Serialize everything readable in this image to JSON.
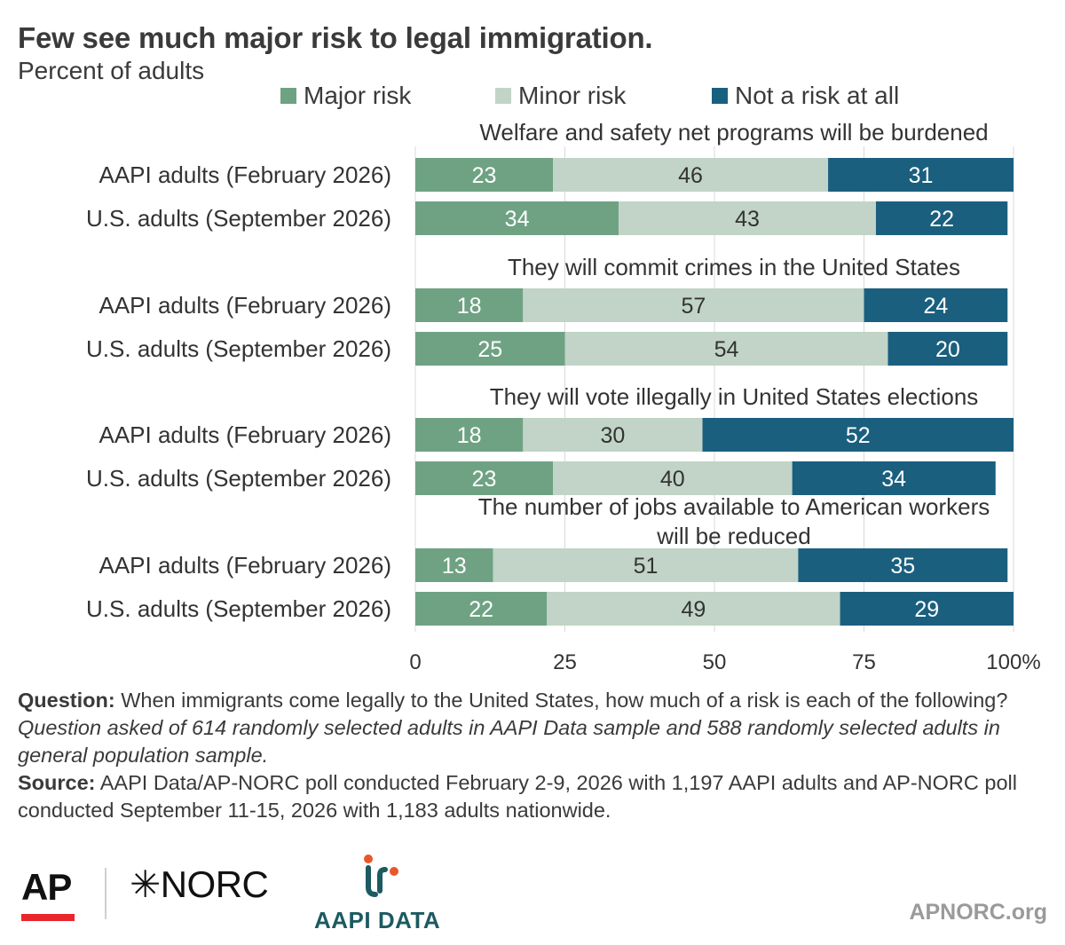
{
  "title": "Few see much major risk to legal immigration.",
  "subtitle": "Percent of adults",
  "colors": {
    "major": "#6fa283",
    "minor": "#c1d4c7",
    "none": "#1b5f7f",
    "text": "#333333",
    "grid": "#d9d9d9"
  },
  "legend": [
    {
      "key": "major",
      "label": "Major risk"
    },
    {
      "key": "minor",
      "label": "Minor risk"
    },
    {
      "key": "none",
      "label": "Not a risk at all"
    }
  ],
  "chart_data": {
    "type": "bar",
    "orientation": "horizontal",
    "stacked": true,
    "xlim": [
      0,
      100
    ],
    "xticks": [
      "0",
      "25",
      "50",
      "75",
      "100%"
    ],
    "grid": true,
    "legend_position": "top",
    "series_names": [
      "Major risk",
      "Minor risk",
      "Not a risk at all"
    ],
    "groups": [
      {
        "title": "Welfare and safety net programs will be burdened",
        "rows": [
          {
            "label": "AAPI adults (February 2026)",
            "values": [
              23,
              46,
              31
            ]
          },
          {
            "label": "U.S. adults (September 2026)",
            "values": [
              34,
              43,
              22
            ]
          }
        ]
      },
      {
        "title": "They will commit crimes in the United States",
        "rows": [
          {
            "label": "AAPI adults (February 2026)",
            "values": [
              18,
              57,
              24
            ]
          },
          {
            "label": "U.S. adults (September 2026)",
            "values": [
              25,
              54,
              20
            ]
          }
        ]
      },
      {
        "title": "They will vote illegally in United States elections",
        "rows": [
          {
            "label": "AAPI adults (February 2026)",
            "values": [
              18,
              30,
              52
            ]
          },
          {
            "label": "U.S. adults (September 2026)",
            "values": [
              23,
              40,
              34
            ]
          }
        ]
      },
      {
        "title": "The number of jobs available to American workers will be reduced",
        "rows": [
          {
            "label": "AAPI adults (February 2026)",
            "values": [
              13,
              51,
              35
            ]
          },
          {
            "label": "U.S. adults (September 2026)",
            "values": [
              22,
              49,
              29
            ]
          }
        ]
      }
    ]
  },
  "footer": {
    "question_label": "Question:",
    "question_text": " When immigrants come legally to the United States, how much of a risk is each of the following? ",
    "question_note": "Question asked of 614 randomly selected adults in AAPI Data sample and 588 randomly selected adults in general population sample.",
    "source_label": "Source:",
    "source_text": " AAPI Data/AP-NORC poll conducted February 2-9, 2026 with 1,197 AAPI adults and AP-NORC poll conducted September 11-15, 2026 with 1,183 adults nationwide."
  },
  "logos": {
    "ap": "AP",
    "norc_mark": "✳",
    "norc": "NORC",
    "aapi": "AAPI DATA"
  },
  "site": "APNORC.org"
}
